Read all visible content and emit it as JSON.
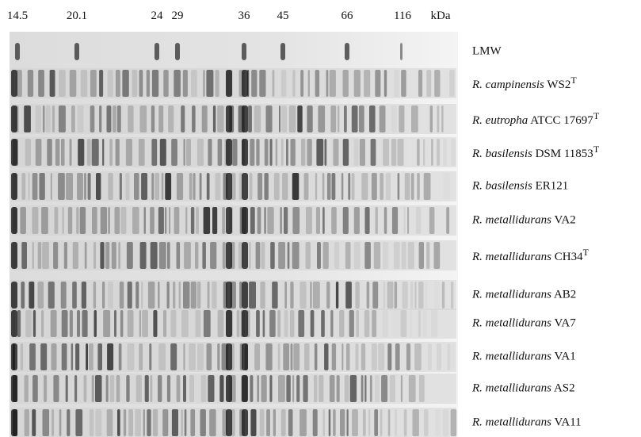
{
  "markers": [
    14.5,
    20.1,
    24,
    29,
    36,
    45,
    66,
    116
  ],
  "unit": "kDa",
  "lanes": [
    {
      "label": "LMW"
    },
    {
      "species": "R. campinensis",
      "strain": "WS2",
      "superscript": "T"
    },
    {
      "species": "R. eutropha",
      "strain": "ATCC 17697",
      "superscript": "T"
    },
    {
      "species": "R. basilensis",
      "strain": "DSM 11853",
      "superscript": "T"
    },
    {
      "species": "R. basilensis",
      "strain": "ER121"
    },
    {
      "species": "R. metallidurans",
      "strain": "VA2"
    },
    {
      "species": "R. metallidurans",
      "strain": "CH34",
      "superscript": "T"
    },
    {
      "species": "R. metallidurans",
      "strain": "AB2"
    },
    {
      "species": "R. metallidurans",
      "strain": "VA7"
    },
    {
      "species": "R. metallidurans",
      "strain": "VA1"
    },
    {
      "species": "R. metallidurans",
      "strain": "AS2"
    },
    {
      "species": "R. metallidurans",
      "strain": "VA11"
    }
  ]
}
